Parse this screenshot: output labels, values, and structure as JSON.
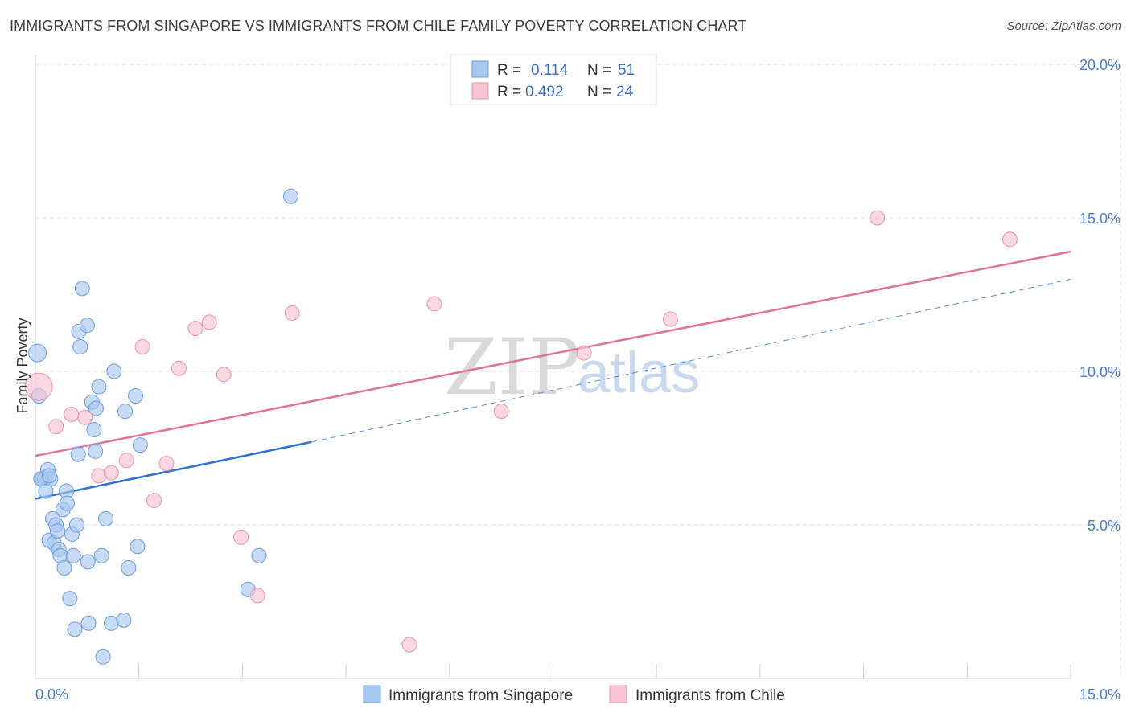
{
  "header": {
    "title": "IMMIGRANTS FROM SINGAPORE VS IMMIGRANTS FROM CHILE FAMILY POVERTY CORRELATION CHART",
    "source": "Source: ZipAtlas.com"
  },
  "watermark": {
    "zip": "ZIP",
    "atlas": "atlas"
  },
  "colors": {
    "singapore_fill": "#a9c8f0",
    "singapore_stroke": "#6d9bd8",
    "singapore_line": "#2f72d0",
    "chile_fill": "#f6c3d2",
    "chile_stroke": "#e695ad",
    "chile_line": "#e07298",
    "axis_text": "#4a7cc7"
  },
  "stats": [
    {
      "r_label": "R =",
      "r_value": "0.114",
      "n_label": "N =",
      "n_value": "51"
    },
    {
      "r_label": "R =",
      "r_value": "0.492",
      "n_label": "N =",
      "n_value": "24"
    }
  ],
  "chart_data": {
    "type": "scatter",
    "title": "IMMIGRANTS FROM SINGAPORE VS IMMIGRANTS FROM CHILE FAMILY POVERTY CORRELATION CHART",
    "ylabel": "Family Poverty",
    "xlabel": "",
    "xlim": [
      0,
      15
    ],
    "ylim": [
      0,
      20
    ],
    "x_ticks": [
      {
        "value": 0,
        "label": "0.0%"
      },
      {
        "value": 15,
        "label": "15.0%"
      }
    ],
    "y_ticks": [
      {
        "value": 5,
        "label": "5.0%"
      },
      {
        "value": 10,
        "label": "10.0%"
      },
      {
        "value": 15,
        "label": "15.0%"
      },
      {
        "value": 20,
        "label": "20.0%"
      }
    ],
    "grid": true,
    "legend_position": "bottom-center",
    "series": [
      {
        "name": "Immigrants from Singapore",
        "color": "#a9c8f0",
        "points": [
          [
            0.03,
            10.6
          ],
          [
            0.05,
            9.2
          ],
          [
            0.1,
            6.5
          ],
          [
            0.13,
            6.5
          ],
          [
            0.15,
            6.1
          ],
          [
            0.18,
            6.8
          ],
          [
            0.2,
            4.5
          ],
          [
            0.22,
            6.5
          ],
          [
            0.25,
            5.2
          ],
          [
            0.27,
            4.4
          ],
          [
            0.3,
            5.0
          ],
          [
            0.32,
            4.8
          ],
          [
            0.34,
            4.2
          ],
          [
            0.36,
            4.0
          ],
          [
            0.4,
            5.5
          ],
          [
            0.42,
            3.6
          ],
          [
            0.45,
            6.1
          ],
          [
            0.46,
            5.7
          ],
          [
            0.5,
            2.6
          ],
          [
            0.53,
            4.7
          ],
          [
            0.55,
            4.0
          ],
          [
            0.57,
            1.6
          ],
          [
            0.6,
            5.0
          ],
          [
            0.62,
            7.3
          ],
          [
            0.63,
            11.3
          ],
          [
            0.65,
            10.8
          ],
          [
            0.68,
            12.7
          ],
          [
            0.75,
            11.5
          ],
          [
            0.76,
            3.8
          ],
          [
            0.77,
            1.8
          ],
          [
            0.82,
            9.0
          ],
          [
            0.85,
            8.1
          ],
          [
            0.87,
            7.4
          ],
          [
            0.88,
            8.8
          ],
          [
            0.92,
            9.5
          ],
          [
            0.96,
            4.0
          ],
          [
            0.98,
            0.7
          ],
          [
            1.02,
            5.2
          ],
          [
            1.1,
            1.8
          ],
          [
            1.14,
            10.0
          ],
          [
            1.28,
            1.9
          ],
          [
            1.3,
            8.7
          ],
          [
            1.35,
            3.6
          ],
          [
            1.45,
            9.2
          ],
          [
            1.48,
            4.3
          ],
          [
            1.52,
            7.6
          ],
          [
            3.08,
            2.9
          ],
          [
            3.24,
            4.0
          ],
          [
            3.7,
            15.7
          ],
          [
            0.08,
            6.5
          ],
          [
            0.2,
            6.6
          ]
        ]
      },
      {
        "name": "Immigrants from Chile",
        "color": "#f6c3d2",
        "points": [
          [
            0.05,
            9.5
          ],
          [
            0.3,
            8.2
          ],
          [
            0.52,
            8.6
          ],
          [
            0.72,
            8.5
          ],
          [
            0.92,
            6.6
          ],
          [
            1.1,
            6.7
          ],
          [
            1.32,
            7.1
          ],
          [
            1.55,
            10.8
          ],
          [
            1.72,
            5.8
          ],
          [
            1.9,
            7.0
          ],
          [
            2.08,
            10.1
          ],
          [
            2.32,
            11.4
          ],
          [
            2.52,
            11.6
          ],
          [
            2.73,
            9.9
          ],
          [
            2.98,
            4.6
          ],
          [
            3.22,
            2.7
          ],
          [
            3.72,
            11.9
          ],
          [
            5.42,
            1.1
          ],
          [
            5.78,
            12.2
          ],
          [
            6.75,
            8.7
          ],
          [
            7.95,
            10.6
          ],
          [
            9.2,
            11.7
          ],
          [
            12.2,
            15.0
          ],
          [
            14.12,
            14.3
          ]
        ]
      }
    ],
    "trendlines": [
      {
        "series": "Immigrants from Singapore",
        "solid_from": [
          0,
          5.85
        ],
        "solid_to": [
          4.0,
          7.7
        ],
        "dashed_to": [
          15,
          13.0
        ]
      },
      {
        "series": "Immigrants from Chile",
        "from": [
          0,
          7.25
        ],
        "to": [
          15,
          13.9
        ]
      }
    ]
  }
}
